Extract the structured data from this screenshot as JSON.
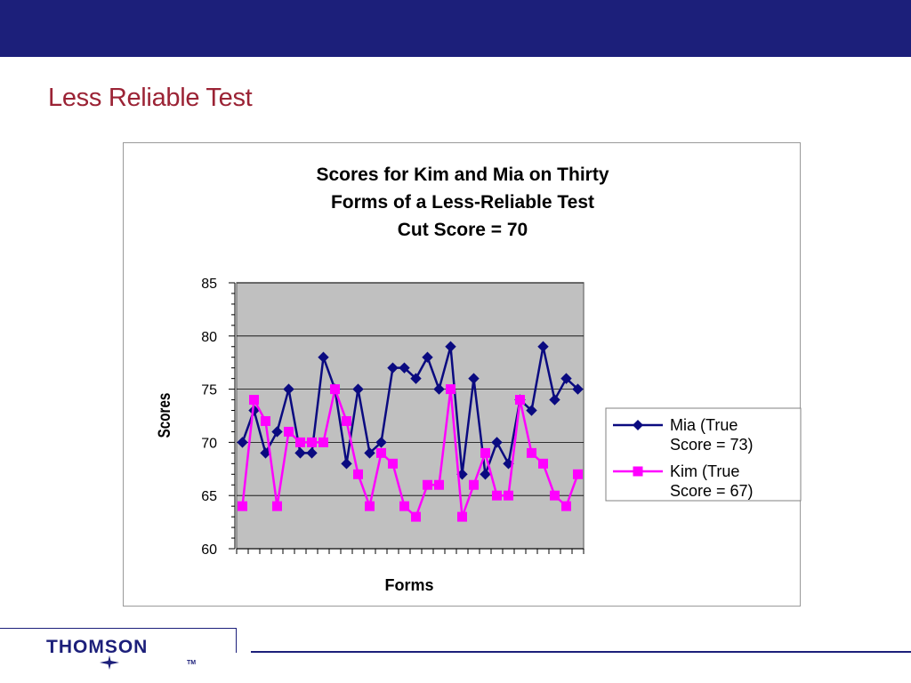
{
  "slide": {
    "title": "Less Reliable Test",
    "logo_text": "THOMSON",
    "logo_tm": "TM"
  },
  "colors": {
    "header_bar": "#1c1f7a",
    "title": "#9b2335",
    "plot_bg": "#c0c0c0",
    "mia": "#0a0a80",
    "kim": "#ff00ff"
  },
  "chart_data": {
    "type": "line",
    "title_lines": [
      "Scores for Kim and Mia on Thirty",
      "Forms of a Less-Reliable Test",
      "Cut Score = 70"
    ],
    "xlabel": "Forms",
    "ylabel": "Scores",
    "ylim": [
      60,
      85
    ],
    "yticks": [
      60,
      65,
      70,
      75,
      80,
      85
    ],
    "grid": true,
    "legend_placement": "right",
    "x": [
      1,
      2,
      3,
      4,
      5,
      6,
      7,
      8,
      9,
      10,
      11,
      12,
      13,
      14,
      15,
      16,
      17,
      18,
      19,
      20,
      21,
      22,
      23,
      24,
      25,
      26,
      27,
      28,
      29,
      30
    ],
    "series": [
      {
        "name_lines": [
          "Mia (True",
          "Score = 73)"
        ],
        "marker": "diamond",
        "values": [
          70,
          73,
          69,
          71,
          75,
          69,
          69,
          78,
          75,
          68,
          75,
          69,
          70,
          77,
          77,
          76,
          78,
          75,
          79,
          67,
          76,
          67,
          70,
          68,
          74,
          73,
          79,
          74,
          76,
          75
        ]
      },
      {
        "name_lines": [
          "Kim (True",
          "Score = 67)"
        ],
        "marker": "square",
        "values": [
          64,
          74,
          72,
          64,
          71,
          70,
          70,
          70,
          75,
          72,
          67,
          64,
          69,
          68,
          64,
          63,
          66,
          66,
          75,
          63,
          66,
          69,
          65,
          65,
          74,
          69,
          68,
          65,
          64,
          67
        ]
      }
    ]
  }
}
